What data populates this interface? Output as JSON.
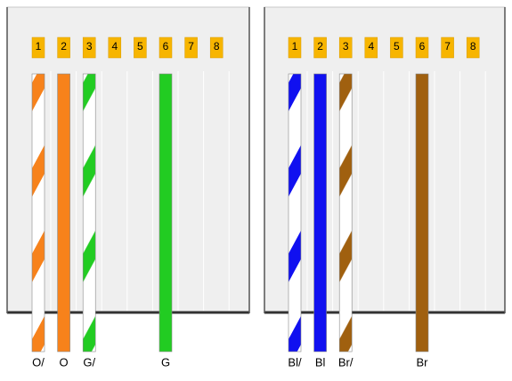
{
  "connectors": [
    {
      "pins": [
        "1",
        "2",
        "3",
        "4",
        "5",
        "6",
        "7",
        "8"
      ],
      "wires": [
        {
          "label": "O/",
          "color": "#f7821b",
          "striped": true
        },
        {
          "label": "O",
          "color": "#f7821b",
          "striped": false
        },
        {
          "label": "G/",
          "color": "#22cc22",
          "striped": true
        },
        {
          "label": "G",
          "color": "#22cc22",
          "striped": false
        }
      ]
    },
    {
      "pins": [
        "1",
        "2",
        "3",
        "4",
        "5",
        "6",
        "7",
        "8"
      ],
      "wires": [
        {
          "label": "Bl/",
          "color": "#1010f0",
          "striped": true
        },
        {
          "label": "Bl",
          "color": "#1010f0",
          "striped": false
        },
        {
          "label": "Br/",
          "color": "#a0600f",
          "striped": true
        },
        {
          "label": "Br",
          "color": "#a0600f",
          "striped": false
        }
      ]
    }
  ]
}
